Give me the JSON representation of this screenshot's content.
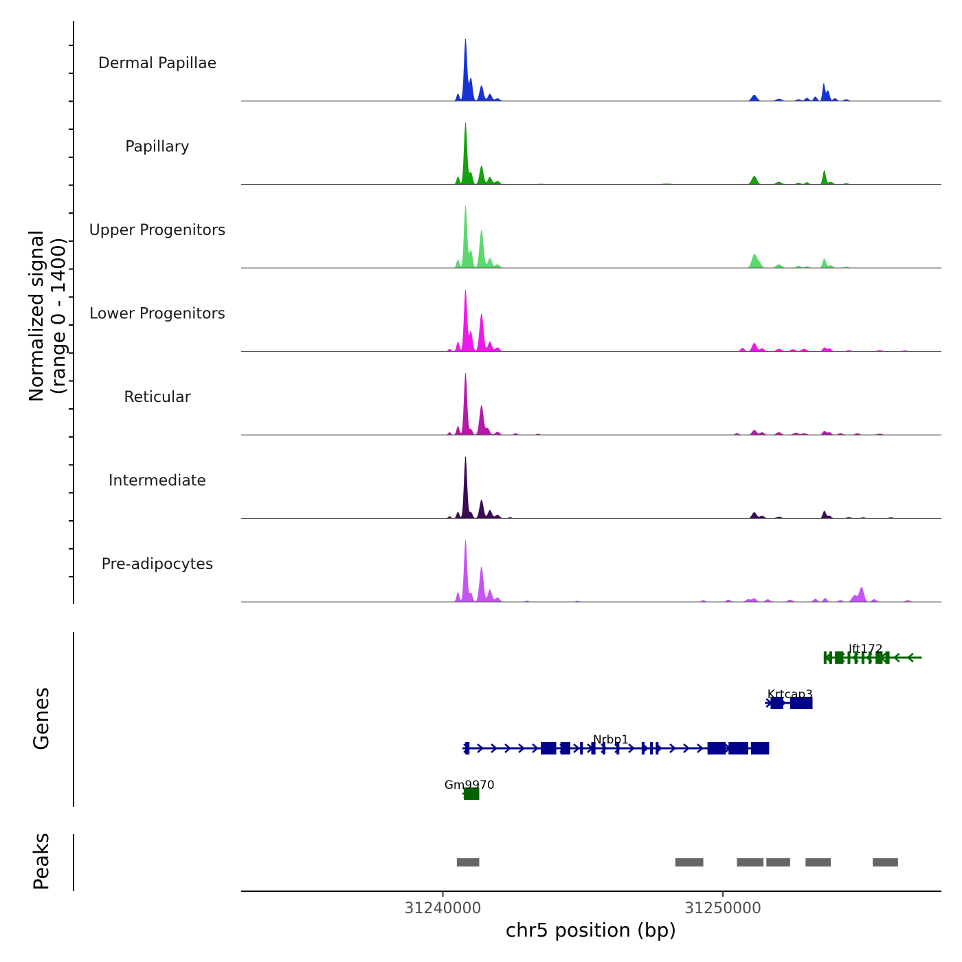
{
  "chart_data": {
    "type": "area",
    "title": "",
    "xlabel": "chr5 position (bp)",
    "ylabel": "Normalized signal\n(range 0 - 1400)",
    "ylabel_lines": [
      "Normalized signal",
      "(range 0 - 1400)"
    ],
    "xlim": [
      31232800,
      31257800
    ],
    "ylim": [
      0,
      1400
    ],
    "x_ticks": [
      31240000,
      31250000
    ],
    "x_tick_labels": [
      "31240000",
      "31250000"
    ],
    "peak_positions_note": "main peaks near 31240800, 31241400, 31251100, 31253300, 31254700",
    "series": [
      {
        "name": "Dermal Papillae",
        "color": "#1633d6",
        "peaks": [
          [
            31240540,
            170,
            50
          ],
          [
            31240810,
            1400,
            55
          ],
          [
            31241000,
            520,
            60
          ],
          [
            31241380,
            350,
            70
          ],
          [
            31241680,
            160,
            70
          ],
          [
            31241950,
            60,
            80
          ],
          [
            31251120,
            140,
            90
          ],
          [
            31252000,
            50,
            100
          ],
          [
            31252700,
            40,
            80
          ],
          [
            31253000,
            70,
            70
          ],
          [
            31253300,
            100,
            60
          ],
          [
            31253600,
            400,
            45
          ],
          [
            31253750,
            240,
            55
          ],
          [
            31254000,
            60,
            70
          ],
          [
            31254400,
            40,
            80
          ]
        ]
      },
      {
        "name": "Papillary",
        "color": "#15a10d",
        "peaks": [
          [
            31240540,
            180,
            50
          ],
          [
            31240810,
            1400,
            55
          ],
          [
            31241000,
            280,
            60
          ],
          [
            31241380,
            420,
            70
          ],
          [
            31241680,
            170,
            70
          ],
          [
            31241950,
            80,
            80
          ],
          [
            31251120,
            190,
            90
          ],
          [
            31252000,
            60,
            100
          ],
          [
            31252700,
            40,
            80
          ],
          [
            31253000,
            50,
            70
          ],
          [
            31253620,
            320,
            55
          ],
          [
            31253850,
            60,
            80
          ],
          [
            31254400,
            30,
            80
          ],
          [
            31248000,
            20,
            200
          ],
          [
            31243500,
            15,
            150
          ]
        ]
      },
      {
        "name": "Upper Progenitors",
        "color": "#5bd86e",
        "peaks": [
          [
            31240540,
            190,
            50
          ],
          [
            31240810,
            1400,
            55
          ],
          [
            31241000,
            400,
            60
          ],
          [
            31241380,
            850,
            70
          ],
          [
            31241680,
            220,
            70
          ],
          [
            31241950,
            80,
            80
          ],
          [
            31251120,
            300,
            90
          ],
          [
            31251300,
            110,
            80
          ],
          [
            31252000,
            80,
            100
          ],
          [
            31252700,
            50,
            80
          ],
          [
            31253000,
            40,
            70
          ],
          [
            31253620,
            210,
            60
          ],
          [
            31253850,
            60,
            80
          ],
          [
            31254400,
            30,
            80
          ]
        ]
      },
      {
        "name": "Lower Progenitors",
        "color": "#ef18ea",
        "peaks": [
          [
            31240240,
            60,
            50
          ],
          [
            31240540,
            220,
            50
          ],
          [
            31240810,
            1400,
            55
          ],
          [
            31241000,
            450,
            60
          ],
          [
            31241380,
            850,
            70
          ],
          [
            31241680,
            220,
            70
          ],
          [
            31241950,
            90,
            80
          ],
          [
            31250700,
            80,
            70
          ],
          [
            31251120,
            190,
            80
          ],
          [
            31251400,
            70,
            80
          ],
          [
            31252000,
            60,
            90
          ],
          [
            31252500,
            50,
            90
          ],
          [
            31252900,
            60,
            90
          ],
          [
            31253620,
            90,
            60
          ],
          [
            31253800,
            70,
            70
          ],
          [
            31254500,
            30,
            90
          ],
          [
            31255600,
            30,
            90
          ],
          [
            31256500,
            25,
            90
          ]
        ]
      },
      {
        "name": "Reticular",
        "color": "#b619a8",
        "peaks": [
          [
            31240240,
            60,
            50
          ],
          [
            31240540,
            200,
            50
          ],
          [
            31240810,
            1400,
            55
          ],
          [
            31241000,
            130,
            60
          ],
          [
            31241380,
            670,
            70
          ],
          [
            31241600,
            150,
            70
          ],
          [
            31241950,
            70,
            80
          ],
          [
            31242600,
            40,
            60
          ],
          [
            31243400,
            30,
            60
          ],
          [
            31250500,
            40,
            70
          ],
          [
            31251120,
            110,
            80
          ],
          [
            31251400,
            60,
            80
          ],
          [
            31252000,
            60,
            90
          ],
          [
            31252600,
            50,
            90
          ],
          [
            31252900,
            40,
            90
          ],
          [
            31253620,
            90,
            60
          ],
          [
            31253800,
            60,
            70
          ],
          [
            31254200,
            40,
            80
          ],
          [
            31254800,
            40,
            80
          ],
          [
            31255600,
            30,
            90
          ]
        ]
      },
      {
        "name": "Intermediate",
        "color": "#3d0b54",
        "peaks": [
          [
            31240240,
            50,
            50
          ],
          [
            31240540,
            150,
            50
          ],
          [
            31240810,
            1400,
            55
          ],
          [
            31241000,
            140,
            60
          ],
          [
            31241380,
            420,
            70
          ],
          [
            31241680,
            190,
            70
          ],
          [
            31241950,
            80,
            80
          ],
          [
            31242400,
            30,
            60
          ],
          [
            31251120,
            140,
            80
          ],
          [
            31251400,
            60,
            80
          ],
          [
            31252000,
            40,
            90
          ],
          [
            31253620,
            170,
            55
          ],
          [
            31253800,
            60,
            70
          ],
          [
            31254500,
            30,
            80
          ],
          [
            31255000,
            25,
            80
          ],
          [
            31256000,
            25,
            80
          ]
        ]
      },
      {
        "name": "Pre-adipocytes",
        "color": "#c654f5",
        "peaks": [
          [
            31240540,
            220,
            50
          ],
          [
            31240810,
            1400,
            55
          ],
          [
            31241000,
            200,
            60
          ],
          [
            31241380,
            790,
            70
          ],
          [
            31241680,
            280,
            70
          ],
          [
            31241950,
            100,
            80
          ],
          [
            31243000,
            30,
            60
          ],
          [
            31244800,
            25,
            60
          ],
          [
            31249300,
            40,
            70
          ],
          [
            31250200,
            50,
            80
          ],
          [
            31250900,
            60,
            80
          ],
          [
            31251120,
            80,
            80
          ],
          [
            31251600,
            60,
            80
          ],
          [
            31252400,
            50,
            90
          ],
          [
            31253300,
            70,
            70
          ],
          [
            31253650,
            90,
            60
          ],
          [
            31254200,
            40,
            80
          ],
          [
            31254700,
            150,
            90
          ],
          [
            31254950,
            330,
            80
          ],
          [
            31255400,
            60,
            80
          ],
          [
            31256600,
            40,
            80
          ]
        ]
      }
    ],
    "genes": [
      {
        "name": "Ift172",
        "color": "#006400",
        "row": 1,
        "strand": "-",
        "start": 31253600,
        "end": 31257100,
        "label_x": 31255100,
        "exons": [
          [
            31253600,
            31253700
          ],
          [
            31253800,
            31253900
          ],
          [
            31254000,
            31254300
          ],
          [
            31254450,
            31254550
          ],
          [
            31254700,
            31254800
          ],
          [
            31254950,
            31255050
          ],
          [
            31255200,
            31255300
          ],
          [
            31255450,
            31255700
          ],
          [
            31255800,
            31255950
          ]
        ]
      },
      {
        "name": "Krtcap3",
        "color": "#00008b",
        "row": 2,
        "strand": "+",
        "start": 31251500,
        "end": 31253200,
        "label_x": 31252400,
        "exons": [
          [
            31251700,
            31252150
          ],
          [
            31252400,
            31253200
          ]
        ]
      },
      {
        "name": "Nrbp1",
        "color": "#00008b",
        "row": 3,
        "strand": "+",
        "start": 31240700,
        "end": 31251500,
        "label_x": 31246000,
        "exons": [
          [
            31240800,
            31240950
          ],
          [
            31243500,
            31244050
          ],
          [
            31244200,
            31244550
          ],
          [
            31244900,
            31245000
          ],
          [
            31245300,
            31245450
          ],
          [
            31245700,
            31245800
          ],
          [
            31246200,
            31246300
          ],
          [
            31247100,
            31247200
          ],
          [
            31247400,
            31247500
          ],
          [
            31247600,
            31247700
          ],
          [
            31249450,
            31250100
          ],
          [
            31250200,
            31250900
          ],
          [
            31251000,
            31251650
          ]
        ]
      },
      {
        "name": "Gm9970",
        "color": "#006400",
        "row": 4,
        "strand": "+",
        "start": 31240700,
        "end": 31241300,
        "label_x": 31240950,
        "exons": [
          [
            31240750,
            31241300
          ]
        ]
      }
    ],
    "genes_title": "Genes",
    "peaks": [
      [
        31240500,
        31241300
      ],
      [
        31248300,
        31249300
      ],
      [
        31250500,
        31251450
      ],
      [
        31251550,
        31252400
      ],
      [
        31252950,
        31253850
      ],
      [
        31255350,
        31256250
      ]
    ],
    "peaks_title": "Peaks",
    "peaks_color": "#666666"
  }
}
